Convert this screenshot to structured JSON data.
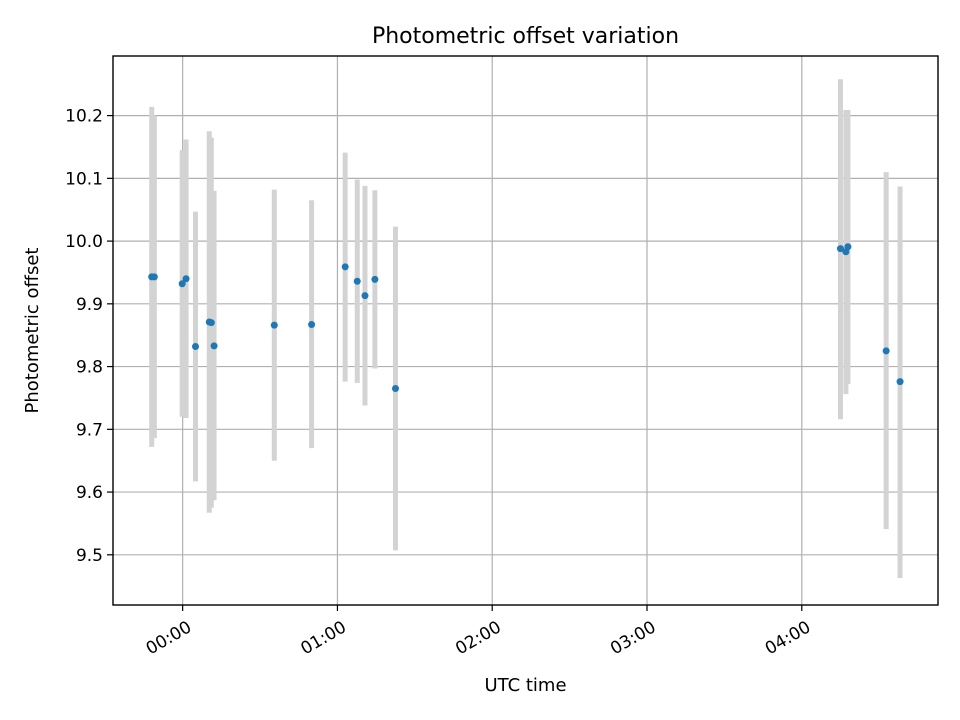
{
  "chart_data": {
    "type": "scatter",
    "title": "Photometric offset variation",
    "xlabel": "UTC time",
    "ylabel": "Photometric offset",
    "x_unit": "hours (UTC)",
    "xlim": [
      -0.45,
      4.88
    ],
    "ylim": [
      9.42,
      10.295
    ],
    "x_ticks": [
      {
        "value": 0,
        "label": "00:00"
      },
      {
        "value": 1,
        "label": "01:00"
      },
      {
        "value": 2,
        "label": "02:00"
      },
      {
        "value": 3,
        "label": "03:00"
      },
      {
        "value": 4,
        "label": "04:00"
      }
    ],
    "y_ticks": [
      {
        "value": 9.5,
        "label": "9.5"
      },
      {
        "value": 9.6,
        "label": "9.6"
      },
      {
        "value": 9.7,
        "label": "9.7"
      },
      {
        "value": 9.8,
        "label": "9.8"
      },
      {
        "value": 9.9,
        "label": "9.9"
      },
      {
        "value": 10.0,
        "label": "10.0"
      },
      {
        "value": 10.1,
        "label": "10.1"
      },
      {
        "value": 10.2,
        "label": "10.2"
      }
    ],
    "grid": true,
    "marker_color": "#1f77b4",
    "errorbar_color": "#d3d3d3",
    "points": [
      {
        "x": -0.2,
        "y": 9.943,
        "y_low": 9.672,
        "y_high": 10.214
      },
      {
        "x": -0.183,
        "y": 9.943,
        "y_low": 9.686,
        "y_high": 10.2
      },
      {
        "x": -0.003,
        "y": 9.932,
        "y_low": 9.72,
        "y_high": 10.145
      },
      {
        "x": 0.022,
        "y": 9.94,
        "y_low": 9.718,
        "y_high": 10.162
      },
      {
        "x": 0.083,
        "y": 9.832,
        "y_low": 9.617,
        "y_high": 10.047
      },
      {
        "x": 0.172,
        "y": 9.871,
        "y_low": 9.567,
        "y_high": 10.175
      },
      {
        "x": 0.185,
        "y": 9.87,
        "y_low": 9.575,
        "y_high": 10.165
      },
      {
        "x": 0.203,
        "y": 9.833,
        "y_low": 9.587,
        "y_high": 10.08
      },
      {
        "x": 0.592,
        "y": 9.866,
        "y_low": 9.65,
        "y_high": 10.082
      },
      {
        "x": 0.833,
        "y": 9.867,
        "y_low": 9.67,
        "y_high": 10.065
      },
      {
        "x": 1.05,
        "y": 9.959,
        "y_low": 9.776,
        "y_high": 10.141
      },
      {
        "x": 1.128,
        "y": 9.936,
        "y_low": 9.774,
        "y_high": 10.098
      },
      {
        "x": 1.178,
        "y": 9.913,
        "y_low": 9.738,
        "y_high": 10.088
      },
      {
        "x": 1.242,
        "y": 9.939,
        "y_low": 9.797,
        "y_high": 10.081
      },
      {
        "x": 1.375,
        "y": 9.765,
        "y_low": 9.507,
        "y_high": 10.023
      },
      {
        "x": 4.25,
        "y": 9.988,
        "y_low": 9.716,
        "y_high": 10.258
      },
      {
        "x": 4.285,
        "y": 9.983,
        "y_low": 9.756,
        "y_high": 10.209
      },
      {
        "x": 4.298,
        "y": 9.991,
        "y_low": 9.772,
        "y_high": 10.209
      },
      {
        "x": 4.545,
        "y": 9.825,
        "y_low": 9.541,
        "y_high": 10.11
      },
      {
        "x": 4.635,
        "y": 9.776,
        "y_low": 9.463,
        "y_high": 10.087
      }
    ]
  }
}
